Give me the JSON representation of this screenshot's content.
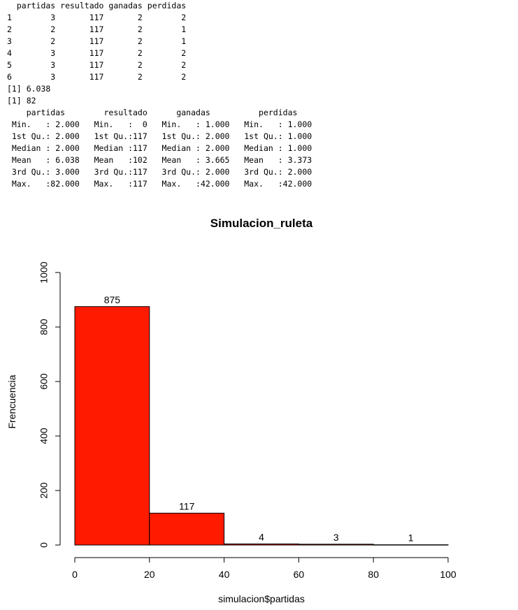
{
  "console": {
    "lines": [
      "  partidas resultado ganadas perdidas",
      "1        3       117       2        2",
      "2        2       117       2        1",
      "3        2       117       2        1",
      "4        3       117       2        2",
      "5        3       117       2        2",
      "6        3       117       2        2",
      "[1] 6.038",
      "[1] 82",
      "    partidas        resultado      ganadas          perdidas     ",
      " Min.   : 2.000   Min.   :  0   Min.   : 1.000   Min.   : 1.000  ",
      " 1st Qu.: 2.000   1st Qu.:117   1st Qu.: 2.000   1st Qu.: 1.000  ",
      " Median : 2.000   Median :117   Median : 2.000   Median : 1.000  ",
      " Mean   : 6.038   Mean   :102   Mean   : 3.665   Mean   : 3.373  ",
      " 3rd Qu.: 3.000   3rd Qu.:117   3rd Qu.: 2.000   3rd Qu.: 2.000  ",
      " Max.   :82.000   Max.   :117   Max.   :42.000   Max.   :42.000  "
    ]
  },
  "chart_data": {
    "type": "bar",
    "title": "Simulacion_ruleta",
    "xlabel": "simulacion$partidas",
    "ylabel": "Frencuencia",
    "bins": [
      [
        0,
        20
      ],
      [
        20,
        40
      ],
      [
        40,
        60
      ],
      [
        60,
        80
      ],
      [
        80,
        100
      ]
    ],
    "values": [
      875,
      117,
      4,
      3,
      1
    ],
    "data_labels": [
      "875",
      "117",
      "4",
      "3",
      "1"
    ],
    "xlim": [
      0,
      100
    ],
    "ylim": [
      0,
      1000
    ],
    "xticks": [
      0,
      20,
      40,
      60,
      80,
      100
    ],
    "yticks": [
      0,
      200,
      400,
      600,
      800,
      1000
    ],
    "bar_color": "#ff1a00",
    "grid": false
  }
}
